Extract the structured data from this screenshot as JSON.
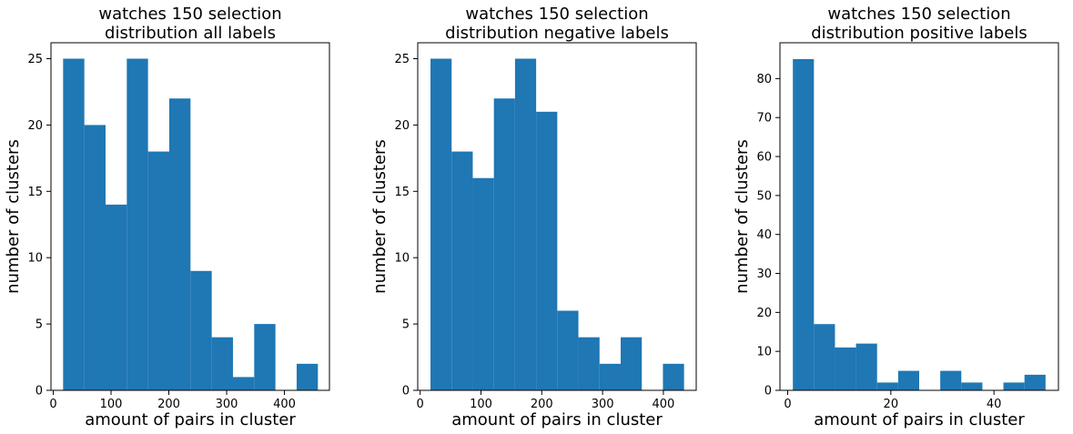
{
  "chart_data": [
    {
      "type": "bar",
      "title": [
        "watches 150 selection",
        "distribution all labels"
      ],
      "xlabel": "amount of pairs in cluster",
      "ylabel": "number of clusters",
      "xlim": [
        -4,
        478
      ],
      "ylim": [
        0,
        26.2
      ],
      "xticks": [
        0,
        100,
        200,
        300,
        400
      ],
      "yticks": [
        0,
        5,
        10,
        15,
        20,
        25
      ],
      "bin_edges": [
        17,
        53.75,
        90.5,
        127.25,
        164,
        200.75,
        237.5,
        274.25,
        311,
        347.75,
        384.5,
        421.25,
        458
      ],
      "values": [
        25,
        20,
        14,
        25,
        18,
        22,
        9,
        4,
        1,
        5,
        0,
        2
      ],
      "color": "#1f77b4"
    },
    {
      "type": "bar",
      "title": [
        "watches 150 selection",
        "distribution negative labels"
      ],
      "xlabel": "amount of pairs in cluster",
      "ylabel": "number of clusters",
      "xlim": [
        -4,
        454
      ],
      "ylim": [
        0,
        26.2
      ],
      "xticks": [
        0,
        100,
        200,
        300,
        400
      ],
      "yticks": [
        0,
        5,
        10,
        15,
        20,
        25
      ],
      "bin_edges": [
        17,
        51.75,
        86.5,
        121.25,
        156,
        190.75,
        225.5,
        260.25,
        295,
        329.75,
        364.5,
        399.25,
        434
      ],
      "values": [
        25,
        18,
        16,
        22,
        25,
        21,
        6,
        4,
        2,
        4,
        0,
        2
      ],
      "color": "#1f77b4"
    },
    {
      "type": "bar",
      "title": [
        "watches 150 selection",
        "distribution positive labels"
      ],
      "xlabel": "amount of pairs in cluster",
      "ylabel": "number of clusters",
      "xlim": [
        -1.5,
        52.5
      ],
      "ylim": [
        0,
        89.2
      ],
      "xticks": [
        0,
        20,
        40
      ],
      "yticks": [
        0,
        10,
        20,
        30,
        40,
        50,
        60,
        70,
        80
      ],
      "bin_edges": [
        1,
        5.083,
        9.167,
        13.25,
        17.333,
        21.417,
        25.5,
        29.583,
        33.667,
        37.75,
        41.833,
        45.917,
        50
      ],
      "values": [
        85,
        17,
        11,
        12,
        2,
        5,
        0,
        5,
        2,
        0,
        2,
        4
      ],
      "color": "#1f77b4"
    }
  ]
}
